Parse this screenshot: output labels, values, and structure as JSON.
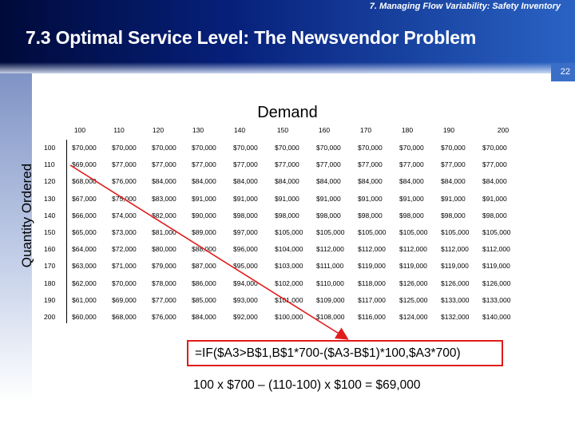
{
  "header": {
    "section": "7. Managing Flow Variability:  Safety Inventory",
    "title": "7.3 Optimal Service Level:  The Newsvendor Problem",
    "page_number": "22"
  },
  "axes": {
    "demand_label": "Demand",
    "quantity_label": "Quantity Ordered"
  },
  "table": {
    "columns": [
      "100",
      "110",
      "120",
      "130",
      "140",
      "150",
      "160",
      "170",
      "180",
      "190",
      "200"
    ],
    "rows": [
      {
        "q": "100",
        "values": [
          "$70,000",
          "$70,000",
          "$70,000",
          "$70,000",
          "$70,000",
          "$70,000",
          "$70,000",
          "$70,000",
          "$70,000",
          "$70,000",
          "$70,000"
        ]
      },
      {
        "q": "110",
        "values": [
          "$69,000",
          "$77,000",
          "$77,000",
          "$77,000",
          "$77,000",
          "$77,000",
          "$77,000",
          "$77,000",
          "$77,000",
          "$77,000",
          "$77,000"
        ]
      },
      {
        "q": "120",
        "values": [
          "$68,000",
          "$76,000",
          "$84,000",
          "$84,000",
          "$84,000",
          "$84,000",
          "$84,000",
          "$84,000",
          "$84,000",
          "$84,000",
          "$84,000"
        ]
      },
      {
        "q": "130",
        "values": [
          "$67,000",
          "$75,000",
          "$83,000",
          "$91,000",
          "$91,000",
          "$91,000",
          "$91,000",
          "$91,000",
          "$91,000",
          "$91,000",
          "$91,000"
        ]
      },
      {
        "q": "140",
        "values": [
          "$66,000",
          "$74,000",
          "$82,000",
          "$90,000",
          "$98,000",
          "$98,000",
          "$98,000",
          "$98,000",
          "$98,000",
          "$98,000",
          "$98,000"
        ]
      },
      {
        "q": "150",
        "values": [
          "$65,000",
          "$73,000",
          "$81,000",
          "$89,000",
          "$97,000",
          "$105,000",
          "$105,000",
          "$105,000",
          "$105,000",
          "$105,000",
          "$105,000"
        ]
      },
      {
        "q": "160",
        "values": [
          "$64,000",
          "$72,000",
          "$80,000",
          "$88,000",
          "$96,000",
          "$104,000",
          "$112,000",
          "$112,000",
          "$112,000",
          "$112,000",
          "$112,000"
        ]
      },
      {
        "q": "170",
        "values": [
          "$63,000",
          "$71,000",
          "$79,000",
          "$87,000",
          "$95,000",
          "$103,000",
          "$111,000",
          "$119,000",
          "$119,000",
          "$119,000",
          "$119,000"
        ]
      },
      {
        "q": "180",
        "values": [
          "$62,000",
          "$70,000",
          "$78,000",
          "$86,000",
          "$94,000",
          "$102,000",
          "$110,000",
          "$118,000",
          "$126,000",
          "$126,000",
          "$126,000"
        ]
      },
      {
        "q": "190",
        "values": [
          "$61,000",
          "$69,000",
          "$77,000",
          "$85,000",
          "$93,000",
          "$101,000",
          "$109,000",
          "$117,000",
          "$125,000",
          "$133,000",
          "$133,000"
        ]
      },
      {
        "q": "200",
        "values": [
          "$60,000",
          "$68,000",
          "$76,000",
          "$84,000",
          "$92,000",
          "$100,000",
          "$108,000",
          "$116,000",
          "$124,000",
          "$132,000",
          "$140,000"
        ]
      }
    ]
  },
  "formula": "=IF($A3>B$1,B$1*700-($A3-B$1)*100,$A3*700)",
  "calculation": "100 x $700 – (110-100) x $100 = $69,000",
  "colors": {
    "accent_red": "#e11b1b",
    "band_dark": "#000a3a",
    "band_light": "#2a63c4"
  }
}
